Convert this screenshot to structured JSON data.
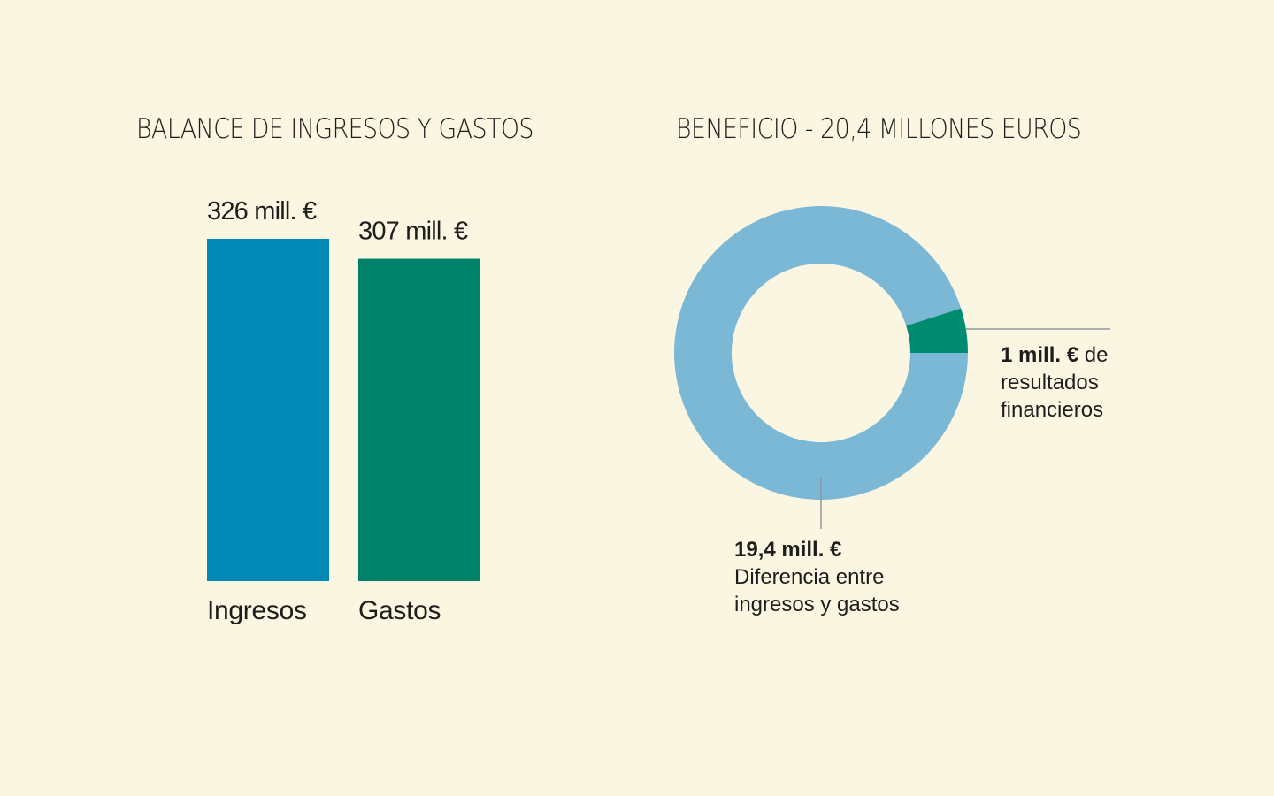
{
  "colors": {
    "background": "#fbf6e2",
    "ingresos": "#0089b6",
    "gastos": "#00826a",
    "ring_main": "#7bb8d6",
    "ring_small": "#008c70",
    "leader": "#8c98a0",
    "text": "#1d1d1b"
  },
  "titles": {
    "left": "BALANCE DE INGRESOS Y GASTOS",
    "right": "BENEFICIO - 20,4 MILLONES EUROS"
  },
  "chart_data": [
    {
      "type": "bar",
      "title": "BALANCE DE INGRESOS Y GASTOS",
      "categories": [
        "Ingresos",
        "Gastos"
      ],
      "values": [
        326,
        307
      ],
      "value_labels": [
        "326 mill. €",
        "307 mill. €"
      ],
      "unit": "mill. €",
      "ylim": [
        0,
        326
      ],
      "grid": false,
      "legend": "none"
    },
    {
      "type": "pie",
      "title": "BENEFICIO - 20,4 MILLONES EUROS",
      "donut": true,
      "total": 20.4,
      "slices": [
        {
          "value": 19.4,
          "label_bold": "19,4 mill. €",
          "label_lines": [
            "Diferencia entre",
            "ingresos y gastos"
          ]
        },
        {
          "value": 1,
          "label_bold": "1 mill. €",
          "label_suffix": " de",
          "label_lines": [
            "resultados",
            "financieros"
          ]
        }
      ],
      "legend": "none"
    }
  ]
}
